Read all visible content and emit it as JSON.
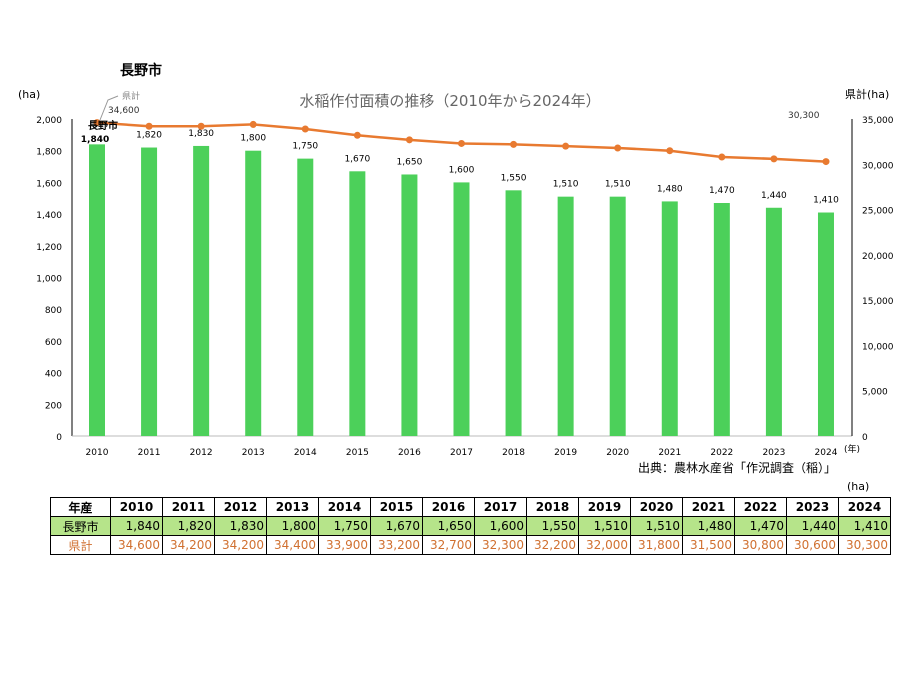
{
  "city_title": "長野市",
  "chart_data": {
    "type": "bar+line",
    "title": "水稲作付面積の推移（2010年から2024年）",
    "categories": [
      "2010",
      "2011",
      "2012",
      "2013",
      "2014",
      "2015",
      "2016",
      "2017",
      "2018",
      "2019",
      "2020",
      "2021",
      "2022",
      "2023",
      "2024"
    ],
    "x_unit": "(年)",
    "left_axis": {
      "label": "(ha)",
      "min": 0,
      "max": 2000,
      "step": 200
    },
    "right_axis": {
      "label": "県計(ha)",
      "min": 0,
      "max": 35000,
      "step": 5000
    },
    "series": [
      {
        "name": "長野市",
        "type": "bar",
        "axis": "left",
        "color": "#4cd05a",
        "values": [
          1840,
          1820,
          1830,
          1800,
          1750,
          1670,
          1650,
          1600,
          1550,
          1510,
          1510,
          1480,
          1470,
          1440,
          1410
        ]
      },
      {
        "name": "県計",
        "type": "line",
        "axis": "right",
        "color": "#e87a30",
        "values": [
          34600,
          34200,
          34200,
          34400,
          33900,
          33200,
          32700,
          32300,
          32200,
          32000,
          31800,
          31500,
          30800,
          30600,
          30300
        ]
      }
    ],
    "line_labels_shown": [
      "34,600",
      "30,300"
    ],
    "grid": false
  },
  "source": "出典：農林水産省「作況調査（稲）」",
  "table": {
    "unit": "(ha)",
    "header": "年産",
    "years": [
      "2010",
      "2011",
      "2012",
      "2013",
      "2014",
      "2015",
      "2016",
      "2017",
      "2018",
      "2019",
      "2020",
      "2021",
      "2022",
      "2023",
      "2024"
    ],
    "rows": [
      {
        "label": "長野市",
        "values": [
          "1,840",
          "1,820",
          "1,830",
          "1,800",
          "1,750",
          "1,670",
          "1,650",
          "1,600",
          "1,550",
          "1,510",
          "1,510",
          "1,480",
          "1,470",
          "1,440",
          "1,410"
        ]
      },
      {
        "label": "県計",
        "values": [
          "34,600",
          "34,200",
          "34,200",
          "34,400",
          "33,900",
          "33,200",
          "32,700",
          "32,300",
          "32,200",
          "32,000",
          "31,800",
          "31,500",
          "30,800",
          "30,600",
          "30,300"
        ]
      }
    ]
  }
}
